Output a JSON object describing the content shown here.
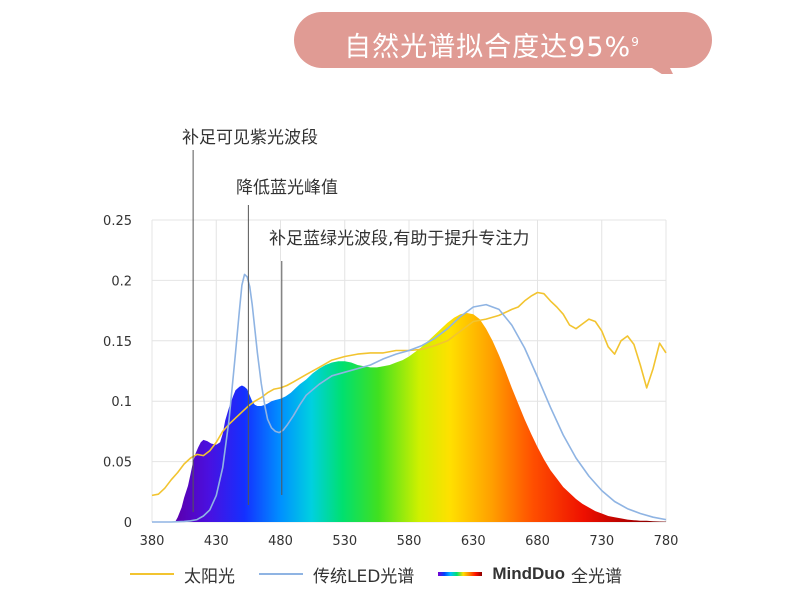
{
  "banner": {
    "text": "自然光谱拟合度达95%",
    "superscript": "9",
    "color": "#e09b94"
  },
  "annotations": {
    "violet": "补足可见紫光波段",
    "blue_peak": "降低蓝光峰值",
    "cyan": "补足蓝绿光波段,有助于提升专注力"
  },
  "legend": {
    "sun": "太阳光",
    "led": "传统LED光谱",
    "mindduo_brand": "MindDuo",
    "mindduo_suffix": "全光谱"
  },
  "colors": {
    "sun": "#f2c430",
    "led": "#8fb4e3",
    "grid": "#e4e4e4"
  },
  "chart_data": {
    "type": "line",
    "xlim": [
      380,
      780
    ],
    "ylim": [
      0,
      0.25
    ],
    "x_ticks": [
      380,
      430,
      480,
      530,
      580,
      630,
      680,
      730,
      780
    ],
    "y_ticks": [
      0,
      0.05,
      0.1,
      0.15,
      0.2,
      0.25
    ],
    "y_tick_labels": [
      "0",
      "0.05",
      "0.1",
      "0.15",
      "0.2",
      "0.25"
    ],
    "grid": true,
    "legend_position": "bottom",
    "annotation_x": {
      "violet": 412,
      "blue_peak": 455,
      "cyan": 481
    },
    "series": [
      {
        "name": "太阳光",
        "style": "line",
        "x": [
          380,
          385,
          390,
          395,
          400,
          405,
          410,
          415,
          420,
          425,
          430,
          435,
          440,
          445,
          450,
          455,
          460,
          465,
          470,
          475,
          480,
          485,
          490,
          500,
          510,
          520,
          530,
          540,
          550,
          560,
          570,
          580,
          590,
          600,
          610,
          620,
          630,
          640,
          650,
          660,
          665,
          670,
          675,
          680,
          685,
          690,
          695,
          700,
          705,
          710,
          715,
          720,
          725,
          730,
          735,
          740,
          745,
          750,
          755,
          760,
          765,
          770,
          775,
          780
        ],
        "y": [
          0.022,
          0.023,
          0.028,
          0.035,
          0.041,
          0.048,
          0.053,
          0.056,
          0.055,
          0.059,
          0.066,
          0.075,
          0.081,
          0.086,
          0.091,
          0.096,
          0.1,
          0.103,
          0.107,
          0.11,
          0.111,
          0.113,
          0.116,
          0.122,
          0.128,
          0.134,
          0.137,
          0.139,
          0.14,
          0.14,
          0.142,
          0.142,
          0.143,
          0.146,
          0.15,
          0.158,
          0.166,
          0.168,
          0.171,
          0.176,
          0.178,
          0.183,
          0.187,
          0.19,
          0.189,
          0.183,
          0.178,
          0.172,
          0.163,
          0.16,
          0.164,
          0.168,
          0.166,
          0.158,
          0.145,
          0.139,
          0.15,
          0.154,
          0.147,
          0.13,
          0.111,
          0.127,
          0.148,
          0.14
        ]
      },
      {
        "name": "传统LED光谱",
        "style": "line",
        "x": [
          380,
          395,
          405,
          410,
          415,
          420,
          425,
          430,
          435,
          440,
          445,
          448,
          450,
          452,
          454,
          456,
          458,
          460,
          462,
          465,
          468,
          470,
          473,
          476,
          479,
          482,
          485,
          490,
          495,
          500,
          510,
          520,
          530,
          540,
          550,
          560,
          570,
          580,
          590,
          600,
          610,
          620,
          630,
          640,
          650,
          660,
          670,
          680,
          690,
          700,
          710,
          720,
          730,
          740,
          750,
          760,
          770,
          780
        ],
        "y": [
          0,
          0,
          0.0005,
          0.001,
          0.002,
          0.005,
          0.01,
          0.022,
          0.045,
          0.085,
          0.14,
          0.175,
          0.196,
          0.205,
          0.203,
          0.195,
          0.18,
          0.16,
          0.14,
          0.115,
          0.095,
          0.085,
          0.078,
          0.075,
          0.074,
          0.076,
          0.08,
          0.088,
          0.097,
          0.105,
          0.114,
          0.121,
          0.124,
          0.127,
          0.13,
          0.135,
          0.139,
          0.142,
          0.146,
          0.152,
          0.16,
          0.17,
          0.178,
          0.18,
          0.176,
          0.163,
          0.144,
          0.12,
          0.095,
          0.072,
          0.053,
          0.038,
          0.026,
          0.017,
          0.011,
          0.007,
          0.004,
          0.002
        ]
      },
      {
        "name": "MindDuo 全光谱",
        "style": "rainbow-area",
        "x": [
          398,
          400,
          403,
          405,
          408,
          410,
          412,
          414,
          416,
          418,
          420,
          423,
          426,
          430,
          433,
          435,
          437,
          440,
          443,
          445,
          448,
          450,
          452,
          454,
          456,
          458,
          460,
          462,
          465,
          468,
          470,
          473,
          476,
          480,
          484,
          488,
          492,
          495,
          500,
          505,
          510,
          515,
          520,
          525,
          530,
          535,
          540,
          545,
          550,
          555,
          560,
          565,
          570,
          575,
          580,
          585,
          590,
          595,
          600,
          605,
          610,
          615,
          620,
          625,
          630,
          635,
          640,
          645,
          650,
          655,
          660,
          665,
          670,
          675,
          680,
          685,
          690,
          695,
          700,
          705,
          710,
          715,
          720,
          725,
          730,
          735,
          740,
          745,
          750,
          755,
          760,
          765,
          770,
          775,
          780
        ],
        "y": [
          0,
          0.004,
          0.012,
          0.02,
          0.03,
          0.04,
          0.05,
          0.057,
          0.062,
          0.066,
          0.068,
          0.067,
          0.065,
          0.064,
          0.066,
          0.073,
          0.084,
          0.095,
          0.104,
          0.109,
          0.112,
          0.113,
          0.112,
          0.11,
          0.105,
          0.1,
          0.097,
          0.096,
          0.096,
          0.097,
          0.098,
          0.1,
          0.101,
          0.102,
          0.104,
          0.107,
          0.111,
          0.114,
          0.118,
          0.123,
          0.127,
          0.13,
          0.132,
          0.133,
          0.133,
          0.132,
          0.13,
          0.129,
          0.128,
          0.128,
          0.129,
          0.13,
          0.132,
          0.134,
          0.137,
          0.141,
          0.145,
          0.15,
          0.155,
          0.16,
          0.165,
          0.169,
          0.172,
          0.173,
          0.172,
          0.168,
          0.16,
          0.15,
          0.138,
          0.125,
          0.111,
          0.098,
          0.085,
          0.073,
          0.062,
          0.052,
          0.043,
          0.036,
          0.029,
          0.024,
          0.019,
          0.015,
          0.012,
          0.009,
          0.007,
          0.005,
          0.004,
          0.003,
          0.002,
          0.0015,
          0.001,
          0.001,
          0.0006,
          0.0004,
          0.0003
        ]
      }
    ]
  }
}
